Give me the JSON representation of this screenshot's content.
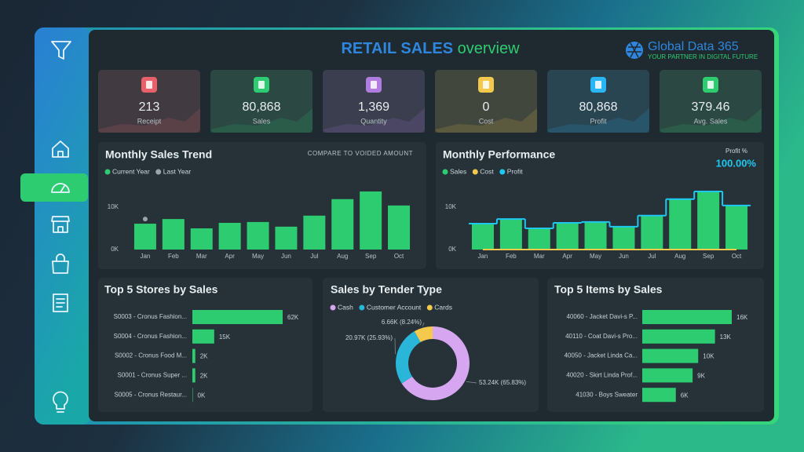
{
  "header": {
    "title_main": "RETAIL SALES",
    "title_accent": "overview",
    "brand": "Global Data 365",
    "tagline": "YOUR PARTNER IN DIGITAL FUTURE"
  },
  "kpis": [
    {
      "value": "213",
      "label": "Receipt",
      "color": "#e8606b"
    },
    {
      "value": "80,868",
      "label": "Sales",
      "color": "#2ecc71"
    },
    {
      "value": "1,369",
      "label": "Quantity",
      "color": "#b07ce0"
    },
    {
      "value": "0",
      "label": "Cost",
      "color": "#f2c94c"
    },
    {
      "value": "80,868",
      "label": "Profit",
      "color": "#29b6f6"
    },
    {
      "value": "379.46",
      "label": "Avg. Sales",
      "color": "#2ecc71"
    }
  ],
  "chart_data": [
    {
      "type": "bar",
      "title": "Monthly Sales Trend",
      "subtitle": "COMPARE TO VOIDED AMOUNT",
      "categories": [
        "Jan",
        "Feb",
        "Mar",
        "Apr",
        "May",
        "Jun",
        "Jul",
        "Aug",
        "Sep",
        "Oct"
      ],
      "series": [
        {
          "name": "Current Year",
          "color": "#2ecc71",
          "mark": "bar",
          "values": [
            6100,
            7200,
            5000,
            6300,
            6500,
            5400,
            8000,
            11900,
            13700,
            10400
          ]
        },
        {
          "name": "Last Year",
          "color": "#9aa5a8",
          "mark": "point",
          "values": [
            7200,
            null,
            null,
            null,
            null,
            null,
            null,
            null,
            null,
            null
          ]
        }
      ],
      "ylim": [
        0,
        15000
      ],
      "yticks": [
        {
          "value": 0,
          "label": "0K"
        },
        {
          "value": 10000,
          "label": "10K"
        }
      ],
      "grid": false
    },
    {
      "type": "combo",
      "title": "Monthly Performance",
      "kpi_label": "Profit %",
      "kpi_value": "100.00%",
      "categories": [
        "Jan",
        "Feb",
        "Mar",
        "Apr",
        "May",
        "Jun",
        "Jul",
        "Aug",
        "Sep",
        "Oct"
      ],
      "series": [
        {
          "name": "Sales",
          "color": "#2ecc71",
          "mark": "bar",
          "values": [
            6100,
            7200,
            5000,
            6300,
            6500,
            5400,
            8000,
            11900,
            13700,
            10400
          ]
        },
        {
          "name": "Cost",
          "color": "#f2c94c",
          "mark": "line",
          "values": [
            0,
            0,
            0,
            0,
            0,
            0,
            0,
            0,
            0,
            0
          ]
        },
        {
          "name": "Profit",
          "color": "#1ec8f0",
          "mark": "step",
          "values": [
            6100,
            7200,
            5000,
            6300,
            6500,
            5400,
            8000,
            11900,
            13700,
            10400
          ]
        }
      ],
      "ylim": [
        0,
        15000
      ],
      "yticks": [
        {
          "value": 0,
          "label": "0K"
        },
        {
          "value": 10000,
          "label": "10K"
        }
      ],
      "grid": false
    },
    {
      "type": "hbar",
      "title": "Top 5 Stores by Sales",
      "color": "#2ecc71",
      "categories": [
        "S0003 - Cronus Fashion...",
        "S0004 - Cronus Fashion...",
        "S0002 - Cronus Food M...",
        "S0001 - Cronus Super ...",
        "S0005 - Cronus Restaur..."
      ],
      "values": [
        62000,
        15000,
        2000,
        2000,
        300
      ],
      "value_labels": [
        "62K",
        "15K",
        "2K",
        "2K",
        "0K"
      ]
    },
    {
      "type": "donut",
      "title": "Sales by Tender Type",
      "categories": [
        "Cash",
        "Customer Account",
        "Cards"
      ],
      "colors": [
        "#d6a6f0",
        "#29b6d9",
        "#f5c94b"
      ],
      "values": [
        53240,
        20970,
        6660
      ],
      "value_labels": [
        "53.24K (65.83%)",
        "20.97K (25.93%)",
        "6.66K (8.24%)"
      ]
    },
    {
      "type": "hbar",
      "title": "Top 5 Items by Sales",
      "color": "#2ecc71",
      "categories": [
        "40060 - Jacket Davi-s P...",
        "40110 - Coat Davi-s Pro...",
        "40050 - Jacket Linda Ca...",
        "40020 - Skirt Linda Prof...",
        "41030 - Boys Sweater"
      ],
      "values": [
        16000,
        13000,
        10000,
        9000,
        6000
      ],
      "value_labels": [
        "16K",
        "13K",
        "10K",
        "9K",
        "6K"
      ]
    }
  ]
}
